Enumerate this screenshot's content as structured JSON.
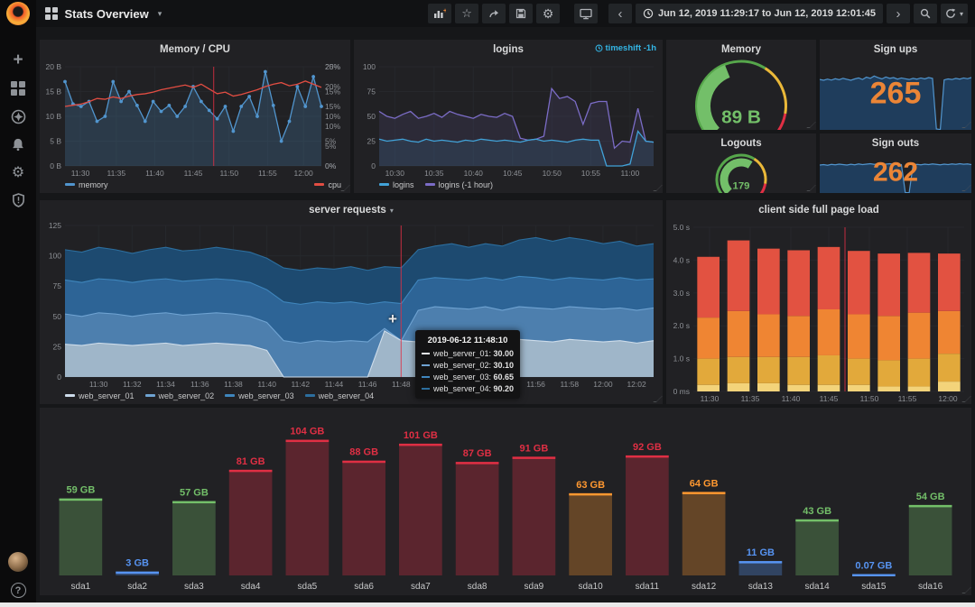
{
  "topbar": {
    "title": "Stats Overview",
    "time_range": "Jun 12, 2019 11:29:17 to Jun 12, 2019 12:01:45",
    "icons": [
      "add-panel-icon",
      "star-icon",
      "share-icon",
      "save-icon",
      "settings-icon",
      "tv-icon",
      "chevron-left-icon",
      "clock-icon",
      "chevron-right-icon",
      "zoom-out-icon",
      "refresh-icon",
      "caret-down-icon"
    ]
  },
  "sidebar": {
    "icons": [
      "plus-icon",
      "dashboards-icon",
      "explore-icon",
      "alerting-icon",
      "configuration-icon",
      "shield-icon",
      "avatar",
      "help-icon"
    ]
  },
  "tooltip": {
    "title": "2019-06-12 11:48:10",
    "rows": [
      {
        "swatch": "#e8eef3",
        "label": "web_server_01:",
        "value": "30.00"
      },
      {
        "swatch": "#6fa3d2",
        "label": "web_server_02:",
        "value": "30.10"
      },
      {
        "swatch": "#3f86bd",
        "label": "web_server_03:",
        "value": "60.65"
      },
      {
        "swatch": "#2c6e9e",
        "label": "web_server_04:",
        "value": "90.20"
      }
    ]
  },
  "colors": {
    "background": "#161719",
    "panel": "#212124",
    "accent_orange": "#eb8536",
    "green": "#73bf69",
    "red": "#e02f44",
    "blue": "#5794f2",
    "yellow_orange": "#ff9830",
    "annotation": "#e02f44",
    "timeshift_cyan": "#33b5e5"
  },
  "chart_data": [
    {
      "id": "memcpu",
      "type": "line",
      "title": "Memory / CPU",
      "yticks": [
        "0 B",
        "5 B",
        "10 B",
        "15 B",
        "20 B"
      ],
      "ymax": 20,
      "yticks_right": [
        "0%",
        "5%",
        "10%",
        "15%",
        "20%",
        "25%"
      ],
      "ymax_right": 25,
      "xticks": [
        "11:30",
        "11:35",
        "11:40",
        "11:45",
        "11:50",
        "11:55",
        "12:00"
      ],
      "xfracs": [
        0.06,
        0.2,
        0.35,
        0.5,
        0.64,
        0.79,
        0.93
      ],
      "annotation_frac": 0.58,
      "series": [
        {
          "name": "memory",
          "axis": "left",
          "color": "#5195ce",
          "fill": "rgba(81,149,206,0.22)",
          "dots": true,
          "values": [
            17,
            12.5,
            12,
            13,
            9,
            10,
            17,
            13,
            15,
            12.2,
            9,
            13,
            11,
            12.2,
            10,
            12,
            16,
            13,
            11.2,
            9.5,
            12,
            7,
            12,
            14,
            10,
            19,
            12.2,
            5,
            9,
            16,
            12,
            18,
            12
          ]
        },
        {
          "name": "cpu",
          "axis": "right",
          "color": "#e24d42",
          "values": [
            15,
            15.3,
            15.6,
            16.2,
            17,
            16.8,
            17.4,
            17,
            17.6,
            18,
            18.2,
            18.6,
            19.2,
            19.6,
            20,
            20.4,
            19.8,
            20.6,
            19.4,
            18.2,
            18.6,
            17.6,
            18,
            18.6,
            19.2,
            20,
            20.6,
            21,
            20.2,
            20.6,
            21.4,
            20.6,
            19.8
          ]
        }
      ],
      "legend": [
        {
          "label": "memory",
          "color": "#5195ce"
        },
        {
          "label": "cpu",
          "color": "#e24d42",
          "right": true
        }
      ]
    },
    {
      "id": "logins",
      "type": "line",
      "title": "logins",
      "timeshift": "timeshift -1h",
      "yticks": [
        "0",
        "25",
        "50",
        "75",
        "100"
      ],
      "ymax": 100,
      "xticks": [
        "10:30",
        "10:35",
        "10:40",
        "10:45",
        "10:50",
        "10:55",
        "11:00"
      ],
      "xfracs": [
        0.057,
        0.2,
        0.343,
        0.486,
        0.629,
        0.771,
        0.914
      ],
      "series": [
        {
          "name": "logins (-1 hour)",
          "axis": "left",
          "color": "#7b6cc6",
          "fill": "rgba(123,108,198,0.12)",
          "values": [
            55,
            50,
            48,
            52,
            55,
            48,
            50,
            53,
            49,
            55,
            52,
            50,
            48,
            52,
            50,
            49,
            53,
            50,
            28,
            26,
            27,
            30,
            78,
            68,
            70,
            65,
            42,
            63,
            65,
            65,
            18,
            25,
            24,
            58,
            25,
            24
          ]
        },
        {
          "name": "logins",
          "axis": "left",
          "color": "#41a2d8",
          "fill": "rgba(65,162,216,0.12)",
          "values": [
            27,
            25,
            26,
            27,
            25,
            24,
            27,
            25,
            26,
            25,
            24,
            26,
            25,
            27,
            26,
            25,
            26,
            25,
            24,
            26,
            27,
            25,
            26,
            25,
            24,
            26,
            27,
            26,
            26,
            0,
            0,
            0,
            2,
            35,
            25,
            24
          ]
        }
      ],
      "legend": [
        {
          "label": "logins",
          "color": "#41a2d8"
        },
        {
          "label": "logins (-1 hour)",
          "color": "#7b6cc6"
        }
      ]
    },
    {
      "id": "gmem",
      "type": "gauge",
      "title": "Memory",
      "value_text": "89 B",
      "value_color": "#73bf69",
      "fraction": 0.42,
      "thresholds": [
        {
          "to": 0.62,
          "color": "#56a64b"
        },
        {
          "to": 0.87,
          "color": "#eab839"
        },
        {
          "to": 1,
          "color": "#e02f44"
        }
      ]
    },
    {
      "id": "signups",
      "type": "spark",
      "title": "Sign ups",
      "big": "265",
      "big_color": "#eb8536",
      "line": "#5195ce",
      "fill": "#1f3d5c",
      "ymax": 300,
      "values": [
        262,
        258,
        264,
        259,
        266,
        261,
        268,
        263,
        258,
        265,
        270,
        262,
        274,
        268,
        280,
        272,
        265,
        275,
        268,
        272,
        264,
        270,
        266,
        262,
        268,
        264,
        270,
        265,
        272,
        268,
        5,
        2,
        260,
        265,
        262,
        268,
        264,
        270,
        266,
        272
      ]
    },
    {
      "id": "glogout",
      "type": "gauge",
      "title": "Logouts",
      "value_text": "179",
      "value_color": "#73bf69",
      "fraction": 0.62,
      "thresholds": [
        {
          "to": 0.62,
          "color": "#56a64b"
        },
        {
          "to": 0.87,
          "color": "#eab839"
        },
        {
          "to": 1,
          "color": "#e02f44"
        }
      ]
    },
    {
      "id": "signouts",
      "type": "spark",
      "title": "Sign outs",
      "big": "262",
      "big_color": "#eb8536",
      "line": "#5195ce",
      "fill": "#1f3d5c",
      "ymax": 300,
      "values": [
        258,
        262,
        256,
        264,
        260,
        266,
        262,
        258,
        265,
        260,
        268,
        262,
        266,
        270,
        264,
        268,
        262,
        266,
        270,
        264,
        268,
        262,
        4,
        2,
        258,
        264,
        260,
        266,
        262,
        268,
        264,
        260,
        266,
        262,
        268,
        264,
        270,
        265,
        268,
        262
      ]
    },
    {
      "id": "server",
      "type": "stacked-area",
      "title": "server requests",
      "yticks": [
        "0",
        "25",
        "50",
        "75",
        "100",
        "125"
      ],
      "ymax": 125,
      "xticks": [
        "11:30",
        "11:32",
        "11:34",
        "11:36",
        "11:38",
        "11:40",
        "11:42",
        "11:44",
        "11:46",
        "11:48",
        "11:50",
        "11:52",
        "11:54",
        "11:56",
        "11:58",
        "12:00",
        "12:02"
      ],
      "xfracs": [
        0.057,
        0.114,
        0.171,
        0.229,
        0.286,
        0.343,
        0.4,
        0.457,
        0.514,
        0.571,
        0.629,
        0.686,
        0.743,
        0.8,
        0.857,
        0.914,
        0.971
      ],
      "annotation_frac": 0.571,
      "bands": [
        {
          "name": "web_server_04",
          "line": "#2c6e9e",
          "fill": "#1d4a70",
          "values": [
            105,
            103,
            107,
            105,
            102,
            105,
            107,
            104,
            105,
            107,
            105,
            103,
            98,
            90,
            88,
            90,
            89,
            91,
            88,
            91,
            90.2,
            105,
            108,
            110,
            107,
            110,
            108,
            113,
            115,
            112,
            115,
            113,
            110,
            112,
            108,
            110
          ]
        },
        {
          "name": "web_server_03",
          "line": "#3f86bd",
          "fill": "#2d6496",
          "values": [
            80,
            78,
            81,
            80,
            78,
            80,
            81,
            79,
            80,
            81,
            80,
            78,
            72,
            62,
            60,
            62,
            61,
            62,
            60,
            62,
            60.65,
            80,
            82,
            81,
            80,
            82,
            80,
            83,
            82,
            80,
            82,
            81,
            80,
            82,
            80,
            81
          ]
        },
        {
          "name": "web_server_02",
          "line": "#6fa3d2",
          "fill": "#4d7fae",
          "values": [
            52,
            50,
            53,
            52,
            50,
            52,
            53,
            51,
            52,
            53,
            52,
            50,
            45,
            30,
            28,
            30,
            29,
            30,
            29,
            40,
            30.1,
            55,
            58,
            57,
            56,
            58,
            55,
            58,
            57,
            56,
            58,
            57,
            56,
            57,
            55,
            57
          ]
        },
        {
          "name": "web_server_01",
          "line": "#cddcea",
          "fill": "#9fb6c9",
          "values": [
            27,
            26,
            28,
            27,
            26,
            27,
            28,
            26,
            27,
            28,
            27,
            26,
            22,
            0,
            0,
            0,
            0,
            0,
            0,
            38,
            30,
            29,
            30,
            31,
            29,
            30,
            28,
            31,
            30,
            29,
            31,
            30,
            29,
            30,
            28,
            30
          ]
        }
      ],
      "legend": [
        {
          "label": "web_server_01",
          "color": "#cddcea"
        },
        {
          "label": "web_server_02",
          "color": "#6fa3d2"
        },
        {
          "label": "web_server_03",
          "color": "#3f86bd"
        },
        {
          "label": "web_server_04",
          "color": "#2c6e9e"
        }
      ]
    },
    {
      "id": "pageload",
      "type": "stacked-bar",
      "title": "client side full page load",
      "yticks": [
        "0 ms",
        "1.0 s",
        "2.0 s",
        "3.0 s",
        "4.0 s",
        "5.0 s"
      ],
      "ymax": 5,
      "xticks": [
        "11:30",
        "11:35",
        "11:40",
        "11:45",
        "11:50",
        "11:55",
        "12:00"
      ],
      "xfracs": [
        0.06,
        0.21,
        0.36,
        0.5,
        0.65,
        0.79,
        0.94
      ],
      "annotation_frac": 0.56,
      "segments": [
        {
          "color": "#f3d37a",
          "values": [
            0.2,
            0.25,
            0.25,
            0.2,
            0.2,
            0.2,
            0.15,
            0.15,
            0.3
          ]
        },
        {
          "color": "#e2a93b",
          "values": [
            0.8,
            0.8,
            0.8,
            0.85,
            0.9,
            0.8,
            0.8,
            0.85,
            0.85
          ]
        },
        {
          "color": "#ef8533",
          "values": [
            1.25,
            1.4,
            1.3,
            1.25,
            1.4,
            1.35,
            1.35,
            1.4,
            1.3
          ]
        },
        {
          "color": "#e25241",
          "values": [
            1.85,
            2.15,
            2.0,
            2.0,
            1.9,
            1.93,
            1.9,
            1.82,
            1.75
          ]
        }
      ]
    },
    {
      "id": "disk",
      "type": "bar-cat",
      "title": "",
      "ymax": 112,
      "categories": [
        "sda1",
        "sda2",
        "sda3",
        "sda4",
        "sda5",
        "sda6",
        "sda7",
        "sda8",
        "sda9",
        "sda10",
        "sda11",
        "sda12",
        "sda13",
        "sda14",
        "sda15",
        "sda16"
      ],
      "values": [
        59,
        3,
        57,
        81,
        104,
        88,
        101,
        87,
        91,
        63,
        92,
        64,
        11,
        43,
        0.07,
        54
      ],
      "labels": [
        "59 GB",
        "3 GB",
        "57 GB",
        "81 GB",
        "104 GB",
        "88 GB",
        "101 GB",
        "87 GB",
        "91 GB",
        "63 GB",
        "92 GB",
        "64 GB",
        "11 GB",
        "43 GB",
        "0.07 GB",
        "54 GB"
      ],
      "colors": [
        "#73bf69",
        "#5794f2",
        "#73bf69",
        "#e02f44",
        "#e02f44",
        "#e02f44",
        "#e02f44",
        "#e02f44",
        "#e02f44",
        "#ff9830",
        "#e02f44",
        "#ff9830",
        "#5794f2",
        "#73bf69",
        "#5794f2",
        "#73bf69"
      ]
    }
  ]
}
